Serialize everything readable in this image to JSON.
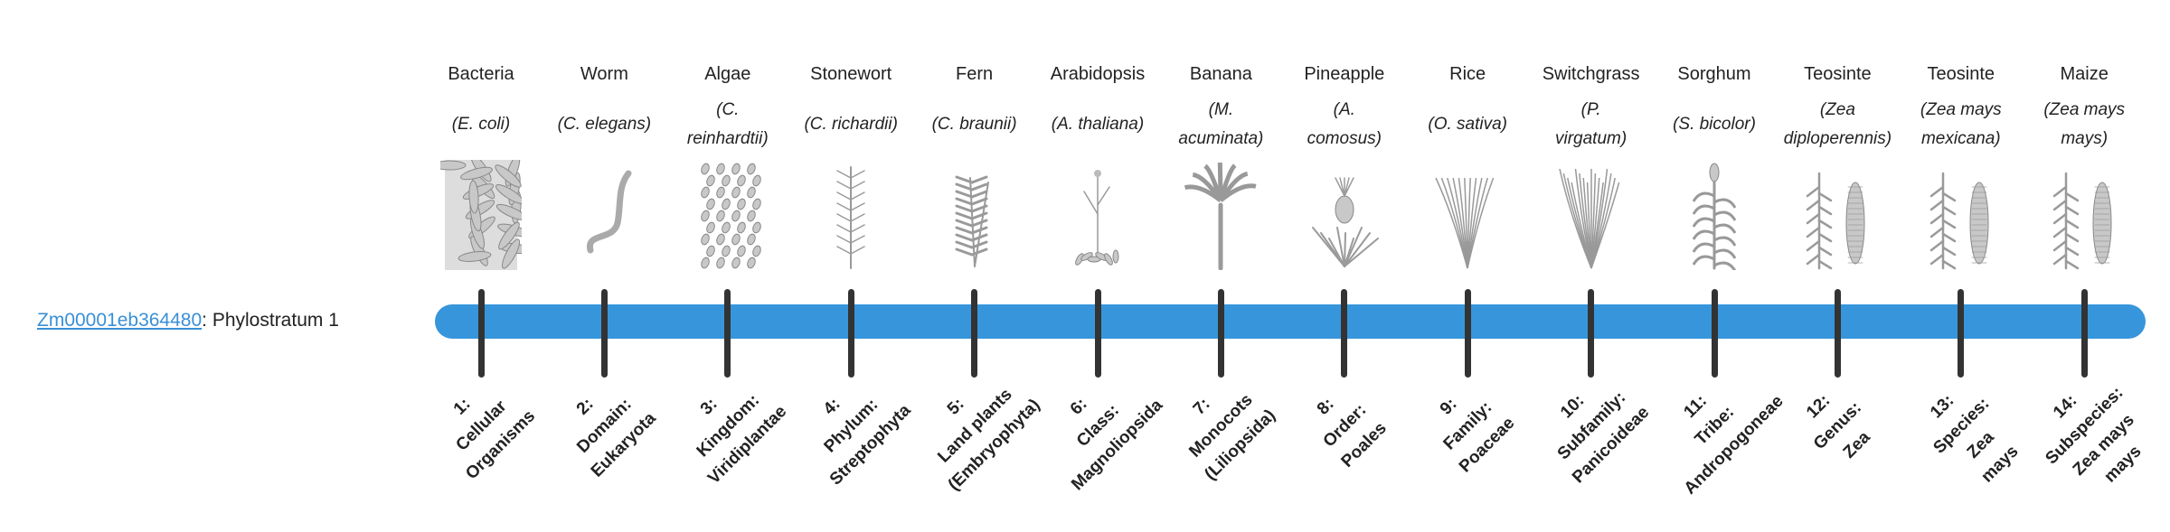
{
  "gene": {
    "id": "Zm00001eb364480",
    "suffix": ": Phylostratum 1"
  },
  "colors": {
    "bar": "#3796db",
    "tick": "#333333",
    "link": "#3a8fd6",
    "illustration": "#9a9a9a"
  },
  "organisms": [
    {
      "common": "Bacteria",
      "latin_lines": [
        "(E. coli)"
      ],
      "icon": "rod-bacteria-icon",
      "kind": "rods"
    },
    {
      "common": "Worm",
      "latin_lines": [
        "(C. elegans)"
      ],
      "icon": "worm-icon",
      "kind": "worm"
    },
    {
      "common": "Algae",
      "latin_lines": [
        "(C.",
        "reinhardtii)"
      ],
      "icon": "algae-cells-icon",
      "kind": "cells"
    },
    {
      "common": "Stonewort",
      "latin_lines": [
        "(C. richardii)"
      ],
      "icon": "stonewort-icon",
      "kind": "stonewort"
    },
    {
      "common": "Fern",
      "latin_lines": [
        "(C. braunii)"
      ],
      "icon": "fern-icon",
      "kind": "fern"
    },
    {
      "common": "Arabidopsis",
      "latin_lines": [
        "(A. thaliana)"
      ],
      "icon": "arabidopsis-icon",
      "kind": "arabidopsis"
    },
    {
      "common": "Banana",
      "latin_lines": [
        "(M.",
        "acuminata)"
      ],
      "icon": "banana-plant-icon",
      "kind": "banana"
    },
    {
      "common": "Pineapple",
      "latin_lines": [
        "(A.",
        "comosus)"
      ],
      "icon": "pineapple-icon",
      "kind": "pineapple"
    },
    {
      "common": "Rice",
      "latin_lines": [
        "(O. sativa)"
      ],
      "icon": "rice-icon",
      "kind": "grass"
    },
    {
      "common": "Switchgrass",
      "latin_lines": [
        "(P.",
        "virgatum)"
      ],
      "icon": "switchgrass-icon",
      "kind": "grass2"
    },
    {
      "common": "Sorghum",
      "latin_lines": [
        "(S. bicolor)"
      ],
      "icon": "sorghum-icon",
      "kind": "sorghum"
    },
    {
      "common": "Teosinte",
      "latin_lines": [
        "(Zea",
        "diploperennis)"
      ],
      "icon": "teosinte-icon",
      "kind": "maize"
    },
    {
      "common": "Teosinte",
      "latin_lines": [
        "(Zea mays",
        "mexicana)"
      ],
      "icon": "teosinte-icon",
      "kind": "maize"
    },
    {
      "common": "Maize",
      "latin_lines": [
        "(Zea mays",
        "mays)"
      ],
      "icon": "maize-icon",
      "kind": "maize"
    }
  ],
  "ranks": [
    {
      "lines": [
        "1:",
        "Cellular",
        "Organisms"
      ]
    },
    {
      "lines": [
        "2:",
        "Domain:",
        "Eukaryota"
      ]
    },
    {
      "lines": [
        "3:",
        "Kingdom:",
        "Viridiplantae"
      ]
    },
    {
      "lines": [
        "4:",
        "Phylum:",
        "Streptophyta"
      ]
    },
    {
      "lines": [
        "5:",
        "Land plants",
        "(Embryophyta)"
      ]
    },
    {
      "lines": [
        "6:",
        "Class:",
        "Magnoliopsida"
      ]
    },
    {
      "lines": [
        "7:",
        "Monocots",
        "(Liliopsida)"
      ]
    },
    {
      "lines": [
        "8:",
        "Order:",
        "Poales"
      ]
    },
    {
      "lines": [
        "9:",
        "Family:",
        "Poaceae"
      ]
    },
    {
      "lines": [
        "10:",
        "Subfamily:",
        "Panicoideae"
      ]
    },
    {
      "lines": [
        "11:",
        "Tribe:",
        "Andropogoneae"
      ]
    },
    {
      "lines": [
        "12:",
        "Genus:",
        "Zea"
      ]
    },
    {
      "lines": [
        "13:",
        "Species:",
        "Zea",
        "mays"
      ]
    },
    {
      "lines": [
        "14:",
        "Subspecies:",
        "Zea mays",
        "mays"
      ]
    }
  ],
  "current_phylostratum": 1
}
